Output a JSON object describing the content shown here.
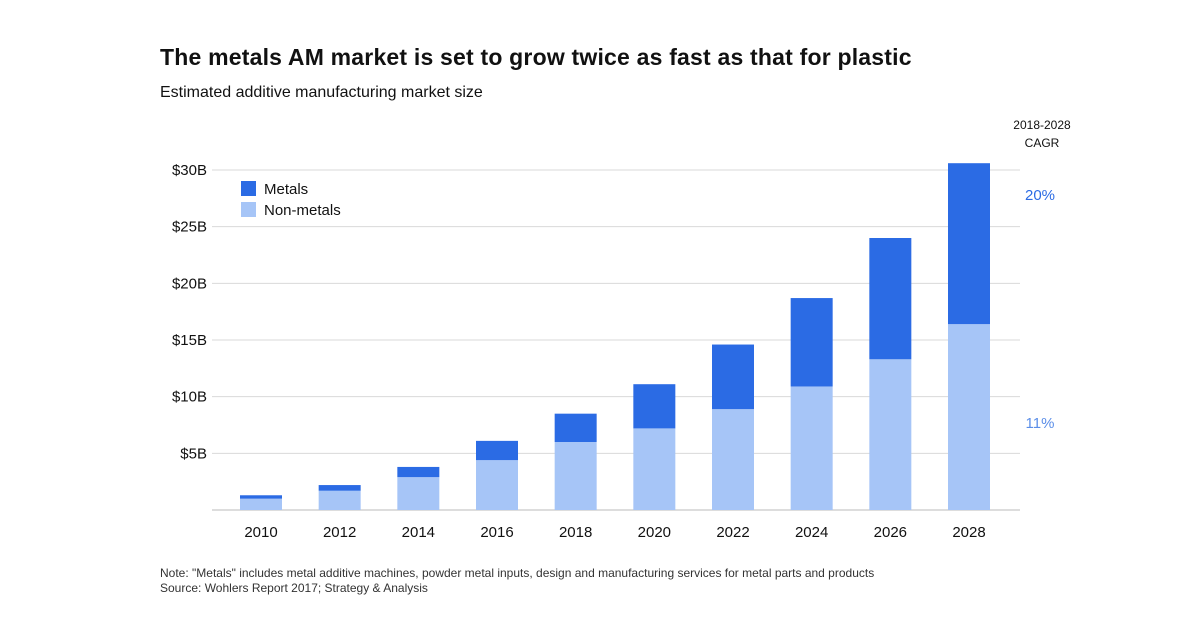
{
  "header": {
    "title": "The metals AM market is set to grow twice as fast as that for plastic",
    "subtitle": "Estimated additive manufacturing market size"
  },
  "cagr": {
    "heading_line1": "2018-2028",
    "heading_line2": "CAGR",
    "metals": "20%",
    "nonmetals": "11%"
  },
  "footer": {
    "note": "Note: \"Metals\" includes metal additive machines, powder metal inputs, design and manufacturing services for metal parts and products",
    "source": "Source: Wohlers Report 2017; Strategy & Analysis"
  },
  "colors": {
    "metals": "#2b6be4",
    "nonmetals": "#a6c5f7",
    "grid": "#d9d9d9",
    "axis": "#bbbbbb"
  },
  "chart_data": {
    "type": "bar",
    "stacked": true,
    "categories": [
      "2010",
      "2012",
      "2014",
      "2016",
      "2018",
      "2020",
      "2022",
      "2024",
      "2026",
      "2028"
    ],
    "series": [
      {
        "name": "Non-metals",
        "values": [
          1.0,
          1.7,
          2.9,
          4.4,
          6.0,
          7.2,
          8.9,
          10.9,
          13.3,
          16.4
        ]
      },
      {
        "name": "Metals",
        "values": [
          0.3,
          0.5,
          0.9,
          1.7,
          2.5,
          3.9,
          5.7,
          7.8,
          10.7,
          14.2
        ]
      }
    ],
    "yticks": [
      5,
      10,
      15,
      20,
      25,
      30
    ],
    "ytick_labels": [
      "$5B",
      "$10B",
      "$15B",
      "$20B",
      "$25B",
      "$30B"
    ],
    "ylim": [
      0,
      30
    ],
    "legend": [
      "Metals",
      "Non-metals"
    ],
    "legend_position": "top-left",
    "grid": true
  }
}
